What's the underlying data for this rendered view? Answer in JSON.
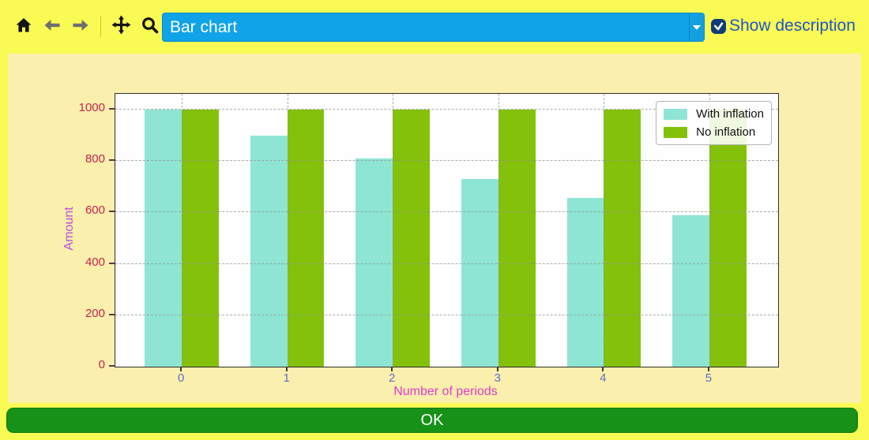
{
  "toolbar": {
    "chart_selector_value": "Bar chart",
    "show_description_label": "Show description",
    "icons": [
      "home-icon",
      "back-icon",
      "forward-icon",
      "pan-icon",
      "zoom-icon",
      "save-icon",
      "checkbox-check-icon",
      "chevron-down-icon"
    ]
  },
  "ok_button_label": "OK",
  "colors": {
    "outer_background": "#FAFA55",
    "figure_background": "#FBEFAD",
    "plot_background": "#FEFEFE",
    "combobox_background": "#11A3E8",
    "show_description_text": "#1E55C6",
    "ok_button_green": "#179117",
    "with_inflation_bar": "#8FE5D4",
    "no_inflation_bar": "#84C10B",
    "y_label_text": "#BE4FE0",
    "x_label_text": "#E23CC8",
    "y_tick_text": "#C0244C",
    "x_tick_text": "#5B6ECF"
  },
  "chart_data": {
    "type": "bar",
    "categories": [
      "0",
      "1",
      "2",
      "3",
      "4",
      "5"
    ],
    "series": [
      {
        "name": "With inflation",
        "color": "#8FE5D4",
        "values": [
          1000,
          900,
          810,
          729,
          656,
          590
        ]
      },
      {
        "name": "No inflation",
        "color": "#84C10B",
        "values": [
          1000,
          1000,
          1000,
          1000,
          1000,
          1000
        ]
      }
    ],
    "title": "",
    "xlabel": "Number of periods",
    "ylabel": "Amount",
    "yticks": [
      0,
      200,
      400,
      600,
      800,
      1000
    ],
    "ylim": [
      0,
      1058
    ],
    "xlim": [
      -0.63,
      5.645
    ],
    "bar_width": 0.35,
    "grid": true,
    "grid_style": "dashed",
    "legend_position": "upper right"
  }
}
